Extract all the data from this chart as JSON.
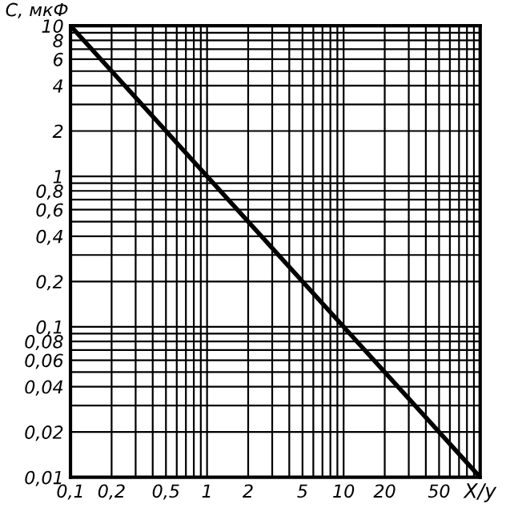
{
  "chart_data": {
    "type": "line",
    "xlabel": "X/y",
    "ylabel": "C, мкФ",
    "x": [
      0.1,
      100
    ],
    "series": [
      {
        "color": "#000000",
        "values": [
          10,
          0.01
        ]
      }
    ],
    "log": "xy",
    "grid": true,
    "marker": "none",
    "line_style": "solid",
    "xlim": [
      0.1,
      100
    ],
    "ylim": [
      0.01,
      10
    ],
    "xticks": [
      {
        "value": 0.1,
        "label": "0,1"
      },
      {
        "value": 0.2,
        "label": "0,2"
      },
      {
        "value": 0.5,
        "label": "0,5"
      },
      1,
      2,
      5,
      10,
      20,
      50
    ],
    "yticks": [
      {
        "value": 0.01,
        "label": "0,01"
      },
      {
        "value": 0.02,
        "label": "0,02"
      },
      {
        "value": 0.04,
        "label": "0,04"
      },
      {
        "value": 0.06,
        "label": "0,06"
      },
      {
        "value": 0.08,
        "label": "0,08"
      },
      {
        "value": 0.1,
        "label": "0,1"
      },
      {
        "value": 0.2,
        "label": "0,2"
      },
      {
        "value": 0.4,
        "label": "0,4"
      },
      {
        "value": 0.6,
        "label": "0,6"
      },
      {
        "value": 0.8,
        "label": "0,8"
      },
      1,
      2,
      4,
      6,
      8,
      10
    ]
  }
}
